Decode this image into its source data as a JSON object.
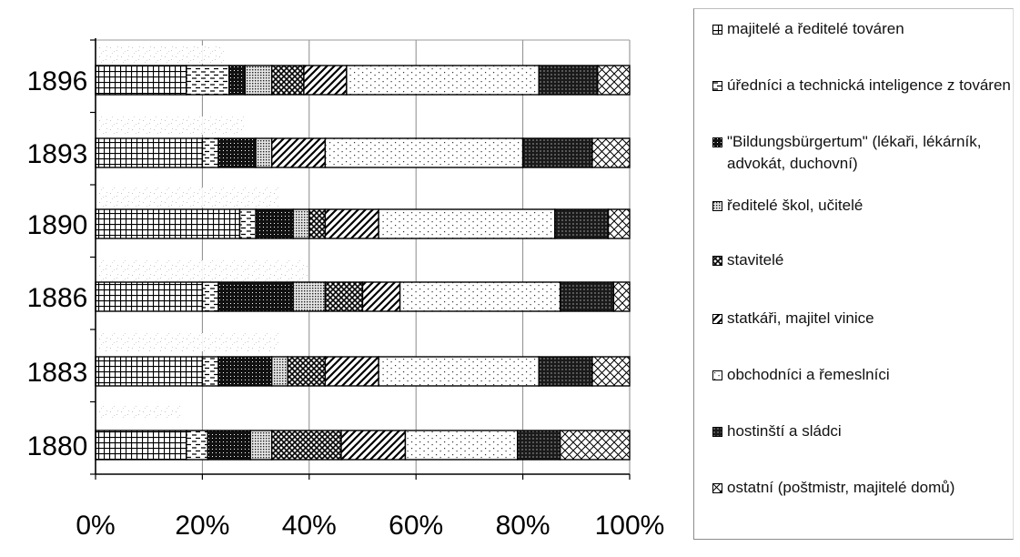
{
  "chart_data": {
    "type": "bar",
    "orientation": "horizontal",
    "stacked": "percent",
    "categories": [
      "1896",
      "1893",
      "1890",
      "1886",
      "1883",
      "1880"
    ],
    "x_ticks": [
      "0%",
      "20%",
      "40%",
      "60%",
      "80%",
      "100%"
    ],
    "xlim": [
      0,
      100
    ],
    "grid": true,
    "legend_position": "right",
    "series": [
      {
        "name": "majitelé a ředitelé továren",
        "pattern": "grid",
        "values": [
          17,
          20,
          27,
          20,
          20,
          17
        ]
      },
      {
        "name": "úředníci a technická inteligence z továren",
        "pattern": "dashes",
        "values": [
          8,
          3,
          3,
          3,
          3,
          4
        ]
      },
      {
        "name": "\"Bildungsbürgertum\" (lékaři, lékárník, advokát, duchovní)",
        "pattern": "dots-dark",
        "values": [
          3,
          7,
          7,
          14,
          10,
          8
        ]
      },
      {
        "name": "ředitelé škol, učitelé",
        "pattern": "dots-dense",
        "values": [
          5,
          3,
          3,
          6,
          3,
          4
        ]
      },
      {
        "name": "stavitelé",
        "pattern": "checker",
        "values": [
          6,
          0,
          3,
          7,
          7,
          13
        ]
      },
      {
        "name": "statkáři, majitel vinice",
        "pattern": "diagonal",
        "values": [
          8,
          10,
          10,
          7,
          10,
          12
        ]
      },
      {
        "name": "obchodníci a řemeslníci",
        "pattern": "dots-sparse",
        "values": [
          36,
          37,
          33,
          30,
          30,
          21
        ]
      },
      {
        "name": "hostinští a sládci",
        "pattern": "dark-grid",
        "values": [
          11,
          13,
          10,
          10,
          10,
          8
        ]
      },
      {
        "name": "ostatní (poštmistr, majitelé domů)",
        "pattern": "crosshatch",
        "values": [
          6,
          7,
          4,
          3,
          7,
          13
        ]
      }
    ]
  }
}
